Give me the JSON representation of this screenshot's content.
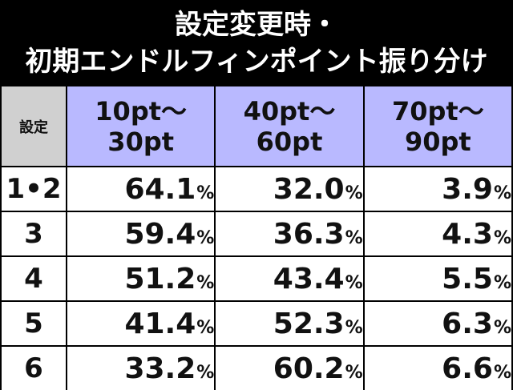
{
  "title": {
    "line1": "設定変更時・",
    "line2": "初期エンドルフィンポイント振り分け"
  },
  "table": {
    "corner_label": "設定",
    "columns": [
      {
        "line1": "10pt～",
        "line2": "30pt"
      },
      {
        "line1": "40pt～",
        "line2": "60pt"
      },
      {
        "line1": "70pt～",
        "line2": "90pt"
      }
    ],
    "unit": "%",
    "rows": [
      {
        "setting": "1•2",
        "values": [
          "64.1",
          "32.0",
          "3.9"
        ]
      },
      {
        "setting": "3",
        "values": [
          "59.4",
          "36.3",
          "4.3"
        ]
      },
      {
        "setting": "4",
        "values": [
          "51.2",
          "43.4",
          "5.5"
        ]
      },
      {
        "setting": "5",
        "values": [
          "41.4",
          "52.3",
          "6.3"
        ]
      },
      {
        "setting": "6",
        "values": [
          "33.2",
          "60.2",
          "6.6"
        ]
      }
    ]
  },
  "colors": {
    "background": "#000000",
    "header_column": "#b9b9ff",
    "header_corner": "#d0d0d0",
    "cell": "#ffffff"
  }
}
